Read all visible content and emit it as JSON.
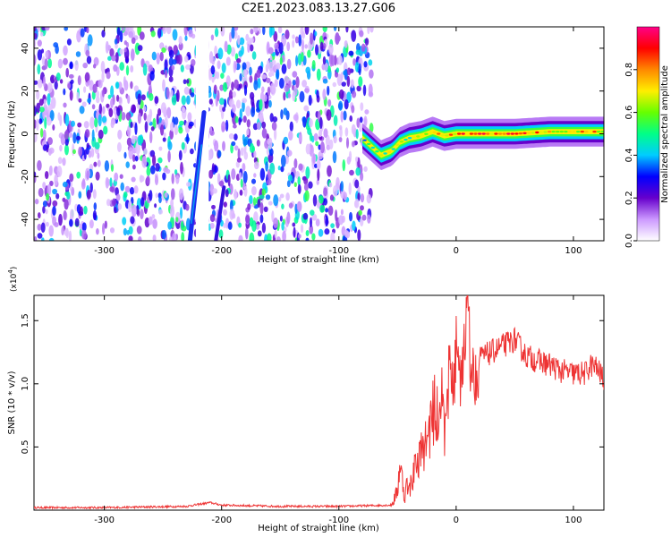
{
  "title": "C2E1.2023.083.13.27.G06",
  "chart_data": [
    {
      "type": "heatmap",
      "name": "spectrogram",
      "xlabel": "Height of straight line (km)",
      "ylabel": "Frequency (Hz)",
      "xlim": [
        -360,
        126
      ],
      "ylim": [
        -50,
        50
      ],
      "xticks": [
        -300,
        -200,
        -100,
        0,
        100
      ],
      "yticks": [
        -40,
        -20,
        0,
        20,
        40
      ],
      "colorbar": {
        "label": "Normalized spectral amplitude",
        "range": [
          0,
          1
        ],
        "ticks": [
          0.0,
          0.2,
          0.4,
          0.6,
          0.8
        ],
        "tick_labels": [
          "0.0",
          "0.2",
          "0.4",
          "0.6",
          "0.8"
        ],
        "colormap": [
          "#ffffff",
          "#cc99ff",
          "#6600cc",
          "#0000ff",
          "#00ccff",
          "#00ff88",
          "#66ff00",
          "#ffee00",
          "#ff8800",
          "#ff0000",
          "#ff0088"
        ]
      },
      "noise_region_x": [
        -360,
        -72
      ],
      "signal_track": {
        "x": [
          -80,
          -72,
          -64,
          -55,
          -48,
          -40,
          -30,
          -20,
          -10,
          0,
          20,
          50,
          80,
          110,
          126
        ],
        "freq": [
          -2,
          -6,
          -10,
          -8,
          -4,
          -2,
          -1,
          1,
          -1,
          0,
          0,
          0,
          1,
          1,
          1
        ],
        "amplitude": [
          0.3,
          0.45,
          0.6,
          0.6,
          0.55,
          0.55,
          0.6,
          0.7,
          0.7,
          0.75,
          0.8,
          0.8,
          0.75,
          0.7,
          0.7
        ]
      },
      "diagonal_track": {
        "x": [
          -227,
          -215
        ],
        "freq": [
          -50,
          10
        ]
      },
      "secondary_track": {
        "x": [
          -205,
          -198
        ],
        "freq": [
          -50,
          -25
        ]
      }
    },
    {
      "type": "line",
      "name": "snr",
      "xlabel": "Height of straight line (km)",
      "ylabel": "SNR (10 * v/v)",
      "y_multiplier": "(x10",
      "y_multiplier_exp": "4",
      "y_multiplier_close": ")",
      "xlim": [
        -360,
        126
      ],
      "ylim": [
        0,
        1.7
      ],
      "xticks": [
        -300,
        -200,
        -100,
        0,
        100
      ],
      "yticks": [
        0.5,
        1.0,
        1.5
      ],
      "ytick_labels": [
        "0.5",
        "1.0",
        "1.5"
      ],
      "color": "#ee3333",
      "series": [
        {
          "name": "SNR",
          "x": [
            -360,
            -300,
            -230,
            -210,
            -200,
            -150,
            -100,
            -55,
            -50,
            -48,
            -46,
            -44,
            -42,
            -40,
            -35,
            -30,
            -25,
            -20,
            -15,
            -10,
            -5,
            0,
            5,
            8,
            10,
            12,
            15,
            20,
            30,
            40,
            50,
            60,
            70,
            80,
            90,
            100,
            110,
            115,
            120,
            126
          ],
          "y": [
            0.02,
            0.02,
            0.03,
            0.06,
            0.04,
            0.03,
            0.03,
            0.04,
            0.15,
            0.38,
            0.25,
            0.1,
            0.2,
            0.15,
            0.35,
            0.45,
            0.55,
            0.75,
            0.85,
            0.95,
            1.05,
            1.15,
            1.2,
            1.4,
            1.7,
            1.2,
            1.05,
            1.2,
            1.25,
            1.3,
            1.35,
            1.22,
            1.18,
            1.15,
            1.1,
            1.08,
            1.08,
            1.15,
            1.12,
            1.04
          ]
        }
      ]
    }
  ]
}
